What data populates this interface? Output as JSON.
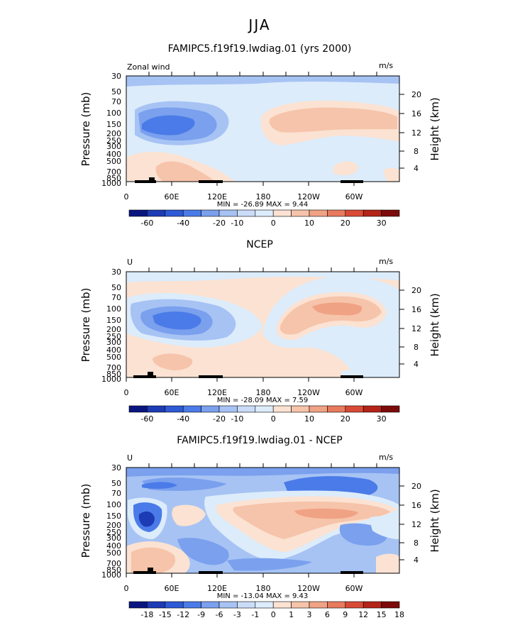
{
  "figure_title": "JJA",
  "chart_data": [
    {
      "type": "heatmap",
      "title": "FAMIPC5.f19f19.lwdiag.01 (yrs 2000)",
      "left_label": "Zonal wind",
      "units": "m/s",
      "ylabel": "Pressure (mb)",
      "y2label": "Height (km)",
      "x_ticks": [
        "0",
        "60E",
        "120E",
        "180",
        "120W",
        "60W"
      ],
      "y_ticks": [
        "30",
        "50",
        "70",
        "100",
        "150",
        "200",
        "250",
        "300",
        "400",
        "500",
        "700",
        "850",
        "1000"
      ],
      "y2_ticks": [
        "20",
        "16",
        "12",
        "8",
        "4"
      ],
      "stats": "MIN = -26.89   MAX =    9.44",
      "colorbar_labels": [
        "-60",
        "-40",
        "-20",
        "-10",
        "0",
        "10",
        "20",
        "30"
      ],
      "colors": [
        "#0a1680",
        "#1d3bb5",
        "#2e5ad6",
        "#4a7be8",
        "#7aa0ee",
        "#a7c3f4",
        "#cadcf8",
        "#dcecfb",
        "#fbe2d2",
        "#f6c4aa",
        "#f0a285",
        "#e87a5e",
        "#d84a35",
        "#b42418",
        "#7d0a0a"
      ],
      "features": [
        {
          "kind": "jet_core",
          "lon": 50,
          "level_mb": 180,
          "value": -25,
          "sign": "easterly"
        },
        {
          "kind": "westerly_band",
          "lon_range": [
            175,
            320
          ],
          "level_mb": 150,
          "value": 8
        },
        {
          "kind": "low_level_westerly",
          "lon_range": [
            40,
            130
          ],
          "level_mb": 700,
          "value": 6
        }
      ]
    },
    {
      "type": "heatmap",
      "title": "NCEP",
      "left_label": "U",
      "units": "m/s",
      "ylabel": "Pressure (mb)",
      "y2label": "Height (km)",
      "x_ticks": [
        "0",
        "60E",
        "120E",
        "180",
        "120W",
        "60W"
      ],
      "y_ticks": [
        "30",
        "50",
        "70",
        "100",
        "150",
        "200",
        "250",
        "300",
        "400",
        "500",
        "700",
        "850",
        "1000"
      ],
      "y2_ticks": [
        "20",
        "16",
        "12",
        "8",
        "4"
      ],
      "stats": "MIN = -28.09   MAX =    7.59",
      "colorbar_labels": [
        "-60",
        "-40",
        "-20",
        "-10",
        "0",
        "10",
        "20",
        "30"
      ],
      "colors": [
        "#0a1680",
        "#1d3bb5",
        "#2e5ad6",
        "#4a7be8",
        "#7aa0ee",
        "#a7c3f4",
        "#cadcf8",
        "#dcecfb",
        "#fbe2d2",
        "#f6c4aa",
        "#f0a285",
        "#e87a5e",
        "#d84a35",
        "#b42418",
        "#7d0a0a"
      ],
      "features": [
        {
          "kind": "jet_core",
          "lon": 80,
          "level_mb": 150,
          "value": -28,
          "sign": "easterly"
        },
        {
          "kind": "westerly_band",
          "lon_range": [
            200,
            320
          ],
          "level_mb": 120,
          "value": 7
        }
      ]
    },
    {
      "type": "heatmap",
      "title": "FAMIPC5.f19f19.lwdiag.01 - NCEP",
      "left_label": "U",
      "units": "m/s",
      "ylabel": "Pressure (mb)",
      "y2label": "Height (km)",
      "x_ticks": [
        "0",
        "60E",
        "120E",
        "180",
        "120W",
        "60W"
      ],
      "y_ticks": [
        "30",
        "50",
        "70",
        "100",
        "150",
        "200",
        "250",
        "300",
        "400",
        "500",
        "700",
        "850",
        "1000"
      ],
      "y2_ticks": [
        "20",
        "16",
        "12",
        "8",
        "4"
      ],
      "stats": "MIN = -13.04   MAX =    9.43",
      "colorbar_labels": [
        "-18",
        "-15",
        "-12",
        "-9",
        "-6",
        "-3",
        "-1",
        "0",
        "1",
        "3",
        "6",
        "9",
        "12",
        "15",
        "18"
      ],
      "colors": [
        "#0a1680",
        "#1d3bb5",
        "#2e5ad6",
        "#4a7be8",
        "#7aa0ee",
        "#a7c3f4",
        "#cadcf8",
        "#dcecfb",
        "#fbe2d2",
        "#f6c4aa",
        "#f0a285",
        "#e87a5e",
        "#d84a35",
        "#b42418",
        "#7d0a0a"
      ],
      "features": [
        {
          "kind": "negative_core",
          "lon": 30,
          "level_mb": 200,
          "value": -13
        },
        {
          "kind": "positive_band",
          "lon_range": [
            200,
            330
          ],
          "level_mb": 150,
          "value": 9
        }
      ]
    }
  ]
}
